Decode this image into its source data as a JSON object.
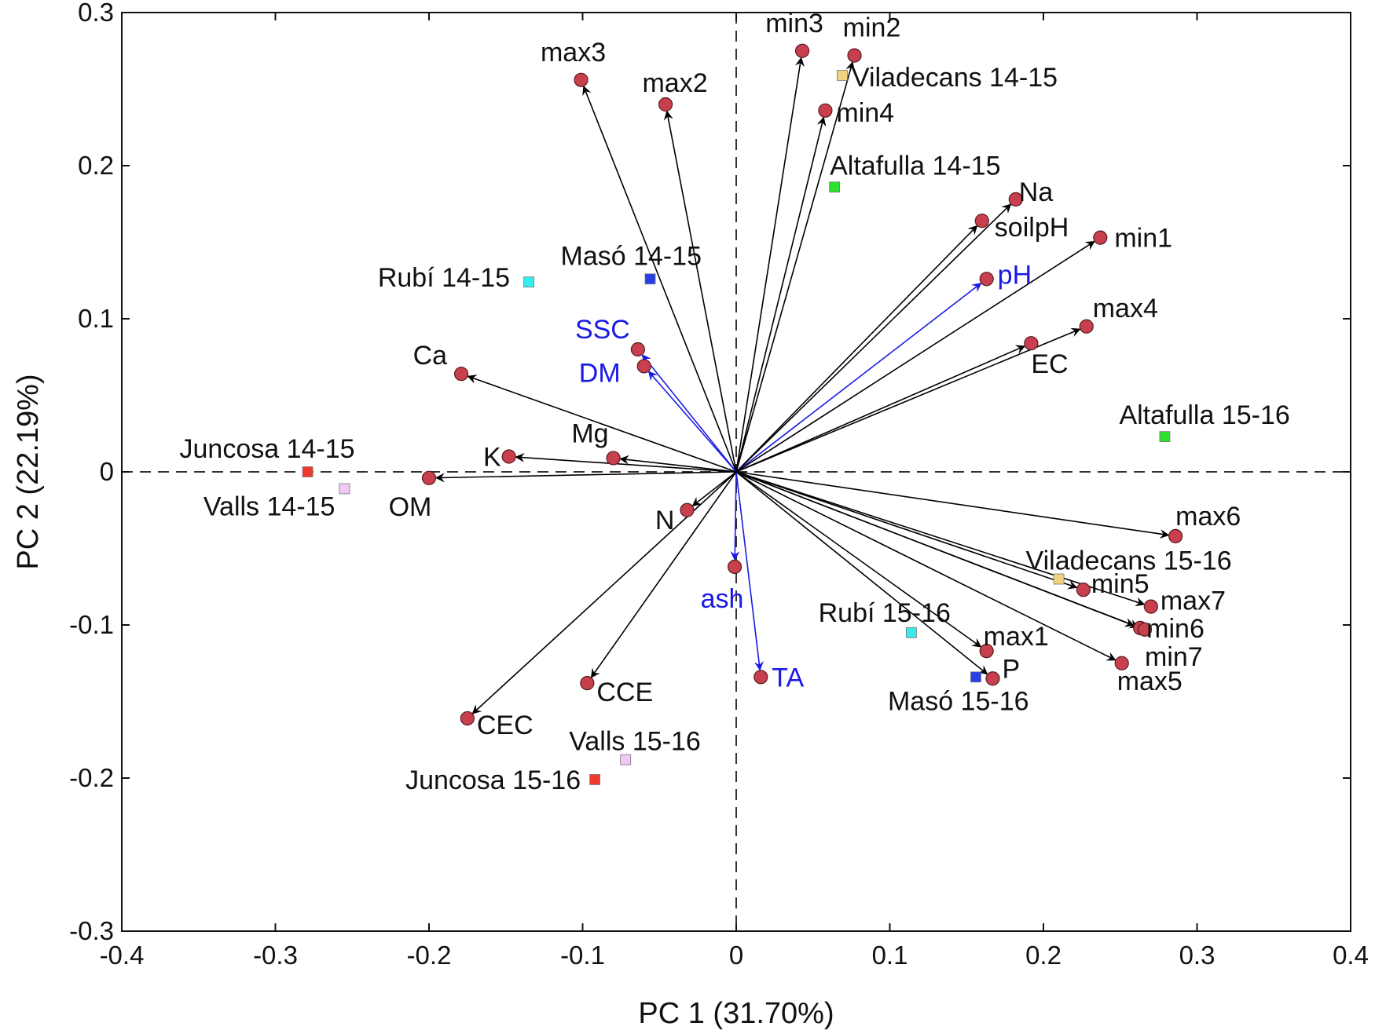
{
  "chart_data": {
    "type": "scatter",
    "subtype": "biplot",
    "xlabel": "PC 1 (31.70%)",
    "ylabel": "PC 2 (22.19%)",
    "xlim": [
      -0.4,
      0.4
    ],
    "ylim": [
      -0.3,
      0.3
    ],
    "xticks": [
      -0.4,
      -0.3,
      -0.2,
      -0.1,
      0,
      0.1,
      0.2,
      0.3,
      0.4
    ],
    "yticks": [
      -0.3,
      -0.2,
      -0.1,
      0,
      0.1,
      0.2,
      0.3
    ],
    "xtick_labels": [
      "-0.4",
      "-0.3",
      "-0.2",
      "-0.1",
      "0",
      "0.1",
      "0.2",
      "0.3",
      "0.4"
    ],
    "ytick_labels": [
      "-0.3",
      "-0.2",
      "-0.1",
      "0",
      "0.1",
      "0.2",
      "0.3"
    ],
    "colors": {
      "variable_arrow": "#000000",
      "quality_arrow": "#1a1ae6",
      "variable_point": "#c8404e",
      "black_label": "#111111",
      "blue_label": "#1a1ae6"
    },
    "variables": [
      {
        "name": "max3",
        "x": -0.101,
        "y": 0.256,
        "kind": "black"
      },
      {
        "name": "max2",
        "x": -0.046,
        "y": 0.24,
        "kind": "black"
      },
      {
        "name": "min3",
        "x": 0.043,
        "y": 0.275,
        "kind": "black"
      },
      {
        "name": "min2",
        "x": 0.077,
        "y": 0.272,
        "kind": "black"
      },
      {
        "name": "min4",
        "x": 0.058,
        "y": 0.236,
        "kind": "black"
      },
      {
        "name": "Na",
        "x": 0.182,
        "y": 0.178,
        "kind": "black"
      },
      {
        "name": "soilpH",
        "x": 0.16,
        "y": 0.164,
        "kind": "black"
      },
      {
        "name": "pH",
        "x": 0.163,
        "y": 0.126,
        "kind": "blue"
      },
      {
        "name": "min1",
        "x": 0.237,
        "y": 0.153,
        "kind": "black"
      },
      {
        "name": "max4",
        "x": 0.228,
        "y": 0.095,
        "kind": "black"
      },
      {
        "name": "EC",
        "x": 0.192,
        "y": 0.084,
        "kind": "black"
      },
      {
        "name": "SSC",
        "x": -0.064,
        "y": 0.08,
        "kind": "blue"
      },
      {
        "name": "DM",
        "x": -0.06,
        "y": 0.069,
        "kind": "blue"
      },
      {
        "name": "Ca",
        "x": -0.179,
        "y": 0.064,
        "kind": "black"
      },
      {
        "name": "Mg",
        "x": -0.08,
        "y": 0.009,
        "kind": "black"
      },
      {
        "name": "K",
        "x": -0.148,
        "y": 0.01,
        "kind": "black"
      },
      {
        "name": "OM",
        "x": -0.2,
        "y": -0.004,
        "kind": "black"
      },
      {
        "name": "N",
        "x": -0.032,
        "y": -0.025,
        "kind": "black"
      },
      {
        "name": "ash",
        "x": -0.001,
        "y": -0.062,
        "kind": "blue"
      },
      {
        "name": "TA",
        "x": 0.016,
        "y": -0.134,
        "kind": "blue"
      },
      {
        "name": "CCE",
        "x": -0.097,
        "y": -0.138,
        "kind": "black"
      },
      {
        "name": "CEC",
        "x": -0.175,
        "y": -0.161,
        "kind": "black"
      },
      {
        "name": "max6",
        "x": 0.286,
        "y": -0.042,
        "kind": "black"
      },
      {
        "name": "min5",
        "x": 0.226,
        "y": -0.077,
        "kind": "black"
      },
      {
        "name": "max7",
        "x": 0.27,
        "y": -0.088,
        "kind": "black"
      },
      {
        "name": "min6",
        "x": 0.263,
        "y": -0.102,
        "kind": "black"
      },
      {
        "name": "min7",
        "x": 0.266,
        "y": -0.103,
        "kind": "black"
      },
      {
        "name": "max5",
        "x": 0.251,
        "y": -0.125,
        "kind": "black"
      },
      {
        "name": "max1",
        "x": 0.163,
        "y": -0.117,
        "kind": "black"
      },
      {
        "name": "P",
        "x": 0.167,
        "y": -0.135,
        "kind": "black"
      }
    ],
    "samples": [
      {
        "name": "Viladecans 14-15",
        "x": 0.069,
        "y": 0.259,
        "color": "#f2d27e"
      },
      {
        "name": "Altafulla 14-15",
        "x": 0.064,
        "y": 0.186,
        "color": "#2ee02e"
      },
      {
        "name": "Masó 14-15",
        "x": -0.056,
        "y": 0.126,
        "color": "#2a3ee6"
      },
      {
        "name": "Rubí 14-15",
        "x": -0.135,
        "y": 0.124,
        "color": "#37ecec"
      },
      {
        "name": "Altafulla 15-16",
        "x": 0.279,
        "y": 0.023,
        "color": "#2ee02e"
      },
      {
        "name": "Juncosa 14-15",
        "x": -0.279,
        "y": 0.0,
        "color": "#ee3a2e"
      },
      {
        "name": "Valls 14-15",
        "x": -0.255,
        "y": -0.011,
        "color": "#f1c8f3"
      },
      {
        "name": "Viladecans 15-16",
        "x": 0.21,
        "y": -0.07,
        "color": "#f2d27e"
      },
      {
        "name": "Rubí 15-16",
        "x": 0.114,
        "y": -0.105,
        "color": "#37ecec"
      },
      {
        "name": "Masó 15-16",
        "x": 0.156,
        "y": -0.134,
        "color": "#2a3ee6"
      },
      {
        "name": "Valls 15-16",
        "x": -0.072,
        "y": -0.188,
        "color": "#f1c8f3"
      },
      {
        "name": "Juncosa 15-16",
        "x": -0.092,
        "y": -0.201,
        "color": "#ee3a2e"
      }
    ]
  }
}
